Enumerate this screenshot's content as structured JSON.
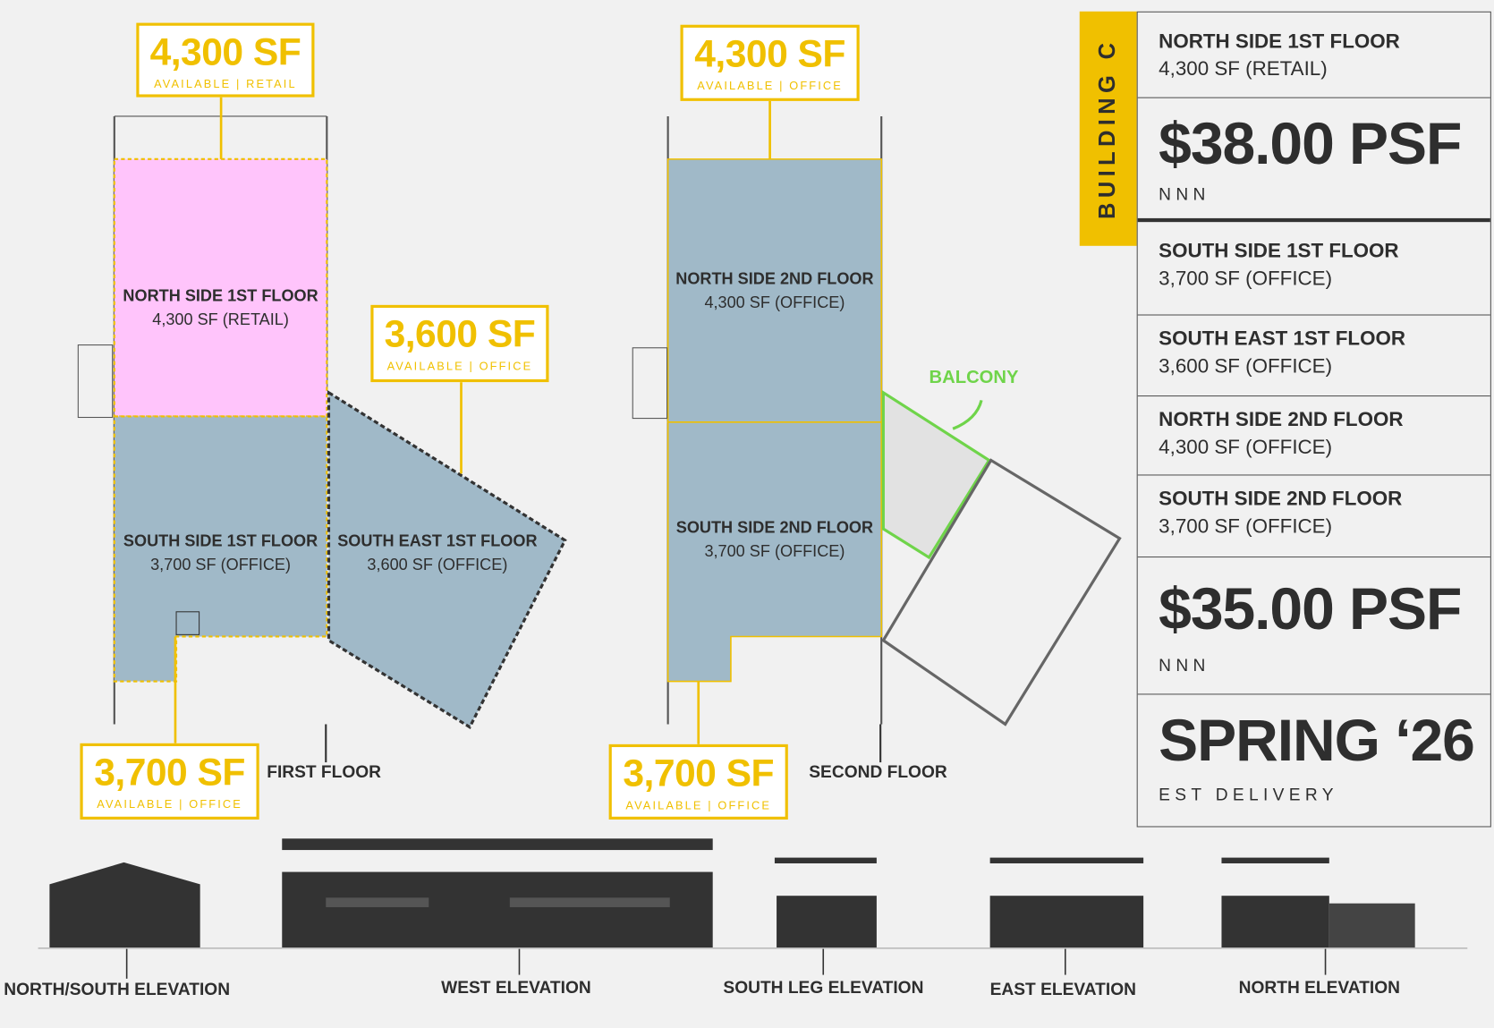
{
  "colors": {
    "accent": "#f0c000",
    "retail": "#ffc4fb",
    "office": "#a0b9c8",
    "balcony": "#6fd44a",
    "text": "#2e2e2e"
  },
  "callouts": [
    {
      "size": "4,300 SF",
      "sub": "AVAILABLE | RETAIL"
    },
    {
      "size": "3,600 SF",
      "sub": "AVAILABLE | OFFICE"
    },
    {
      "size": "3,700 SF",
      "sub": "AVAILABLE | OFFICE"
    },
    {
      "size": "4,300 SF",
      "sub": "AVAILABLE | OFFICE"
    },
    {
      "size": "3,700 SF",
      "sub": "AVAILABLE | OFFICE"
    }
  ],
  "zones": [
    {
      "title": "NORTH SIDE 1ST FLOOR",
      "detail": "4,300 SF (RETAIL)"
    },
    {
      "title": "SOUTH SIDE 1ST FLOOR",
      "detail": "3,700 SF (OFFICE)"
    },
    {
      "title": "SOUTH EAST 1ST FLOOR",
      "detail": "3,600 SF (OFFICE)"
    },
    {
      "title": "NORTH SIDE 2ND FLOOR",
      "detail": "4,300 SF (OFFICE)"
    },
    {
      "title": "SOUTH SIDE 2ND FLOOR",
      "detail": "3,700 SF (OFFICE)"
    }
  ],
  "plans": {
    "first": "FIRST FLOOR",
    "second": "SECOND FLOOR",
    "balcony": "BALCONY"
  },
  "panel": {
    "building": "BUILDING C",
    "rows": [
      {
        "title": "NORTH SIDE 1ST FLOOR",
        "detail": "4,300 SF (RETAIL)"
      },
      {
        "price": "$38.00 PSF",
        "sub": "NNN"
      },
      {
        "title": "SOUTH SIDE 1ST FLOOR",
        "detail": "3,700 SF (OFFICE)"
      },
      {
        "title": "SOUTH EAST 1ST FLOOR",
        "detail": "3,600 SF (OFFICE)"
      },
      {
        "title": "NORTH SIDE 2ND FLOOR",
        "detail": "4,300 SF (OFFICE)"
      },
      {
        "title": "SOUTH SIDE 2ND FLOOR",
        "detail": "3,700 SF (OFFICE)"
      },
      {
        "price": "$35.00 PSF",
        "sub": "NNN"
      },
      {
        "price": "SPRING ‘26",
        "sub": "EST DELIVERY"
      }
    ]
  },
  "elevations": [
    "NORTH/SOUTH ELEVATION",
    "WEST ELEVATION",
    "SOUTH LEG ELEVATION",
    "EAST ELEVATION",
    "NORTH ELEVATION"
  ]
}
